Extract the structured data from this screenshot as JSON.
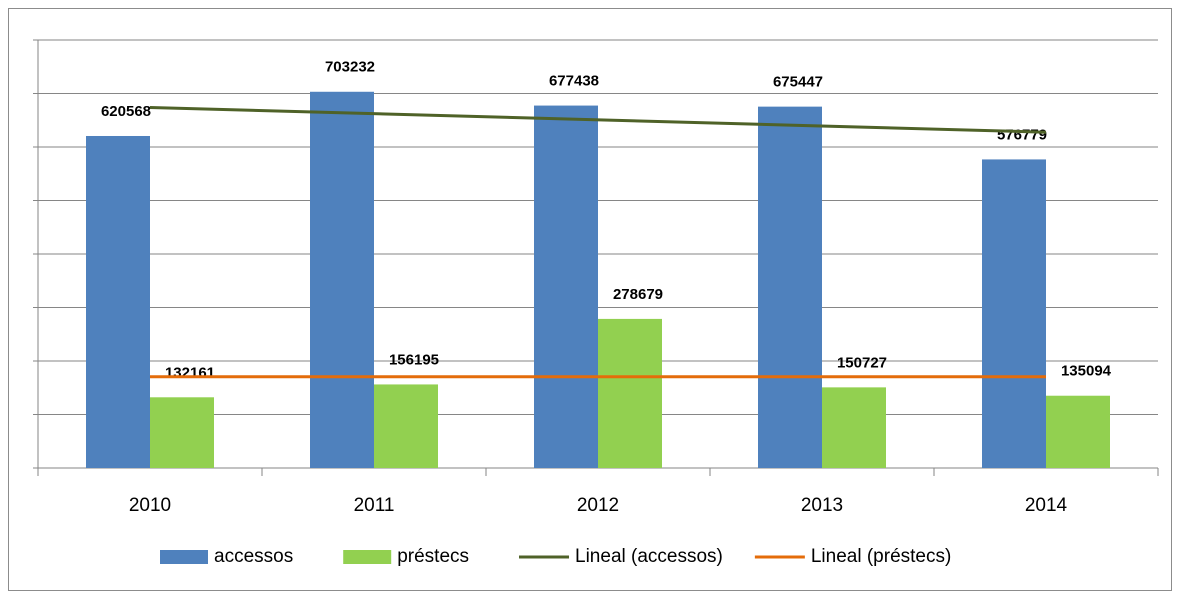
{
  "chart_data": {
    "type": "bar",
    "categories": [
      "2010",
      "2011",
      "2012",
      "2013",
      "2014"
    ],
    "series": [
      {
        "name": "accessos",
        "color": "#4f81bd",
        "values": [
          620568,
          703232,
          677438,
          675447,
          576779
        ],
        "trendline": {
          "name": "Lineal (accessos)",
          "color": "#4f6228"
        }
      },
      {
        "name": "préstecs",
        "color": "#92d050",
        "values": [
          132161,
          156195,
          278679,
          150727,
          135094
        ],
        "trendline": {
          "name": "Lineal (préstecs)",
          "color": "#e46c0a"
        }
      }
    ],
    "ylim": [
      0,
      800000
    ],
    "yticks": [
      0,
      100000,
      200000,
      300000,
      400000,
      500000,
      600000,
      700000,
      800000
    ],
    "grid": true
  }
}
